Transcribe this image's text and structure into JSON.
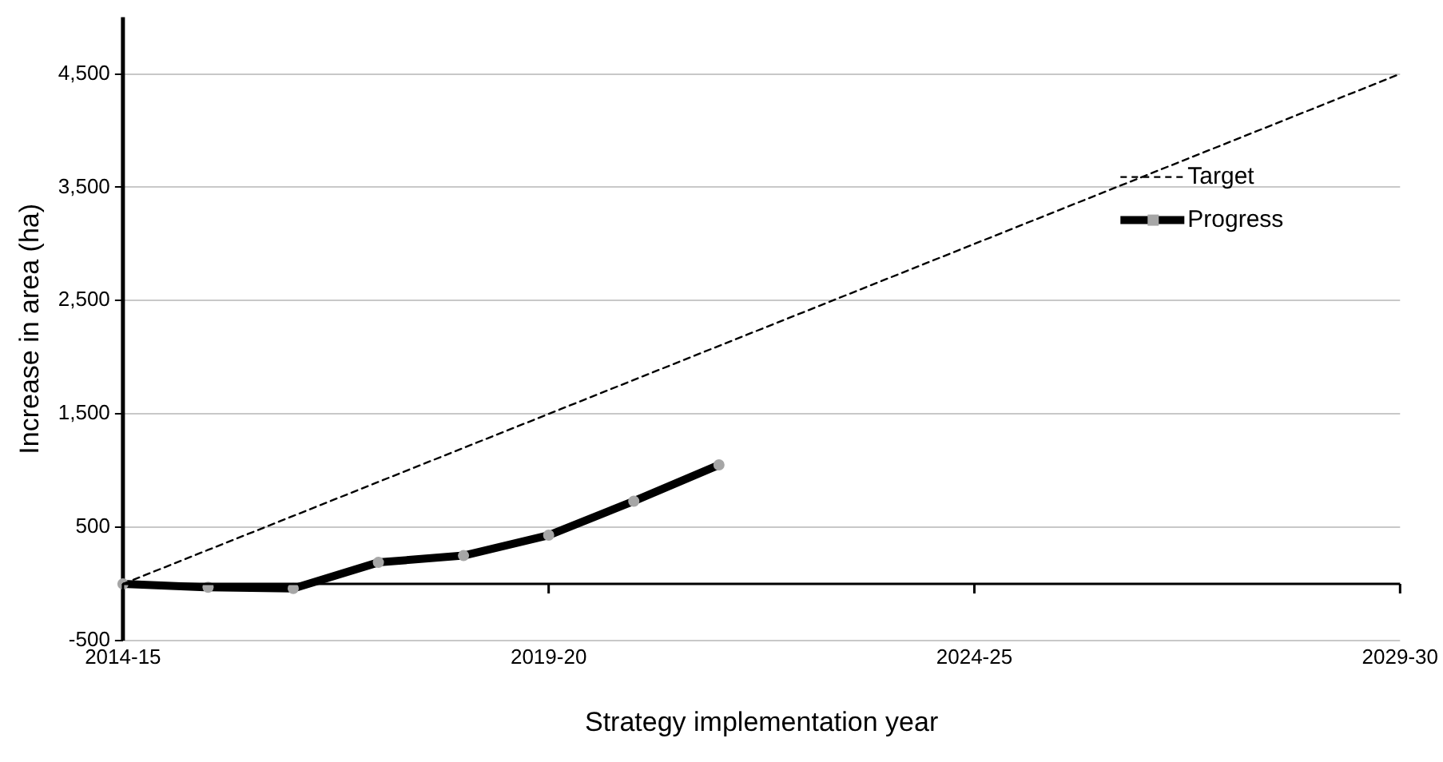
{
  "chart_data": {
    "type": "line",
    "xlabel": "Strategy implementation year",
    "ylabel": "Increase in area (ha)",
    "categories": [
      "2014-15",
      null,
      null,
      null,
      null,
      "2019-20",
      null,
      null,
      null,
      null,
      "2024-25",
      null,
      null,
      null,
      null,
      "2029-30"
    ],
    "series": [
      {
        "name": "Target",
        "color": "#000000",
        "line_style": "dashed",
        "marker": "none",
        "values": [
          0,
          300,
          600,
          900,
          1200,
          1500,
          1800,
          2100,
          2400,
          2700,
          3000,
          3300,
          3600,
          3900,
          4200,
          4500
        ]
      },
      {
        "name": "Progress",
        "color": "#000000",
        "line_style": "solid",
        "marker": "circle",
        "values": [
          0,
          -30,
          -40,
          190,
          250,
          430,
          730,
          1050,
          null,
          null,
          null,
          null,
          null,
          null,
          null,
          null
        ]
      }
    ],
    "ylim": [
      -500,
      5000
    ],
    "yticks": [
      -500,
      500,
      {
        "value": 1500,
        "label": "1,500"
      },
      {
        "value": 2500,
        "label": "2,500"
      },
      {
        "value": 3500,
        "label": "3,500"
      },
      {
        "value": 4500,
        "label": "4,500"
      }
    ],
    "grid": "y",
    "legend": "top right",
    "ref_lines": [
      {
        "axis": "y",
        "value": 0,
        "color": "#000000"
      }
    ]
  }
}
